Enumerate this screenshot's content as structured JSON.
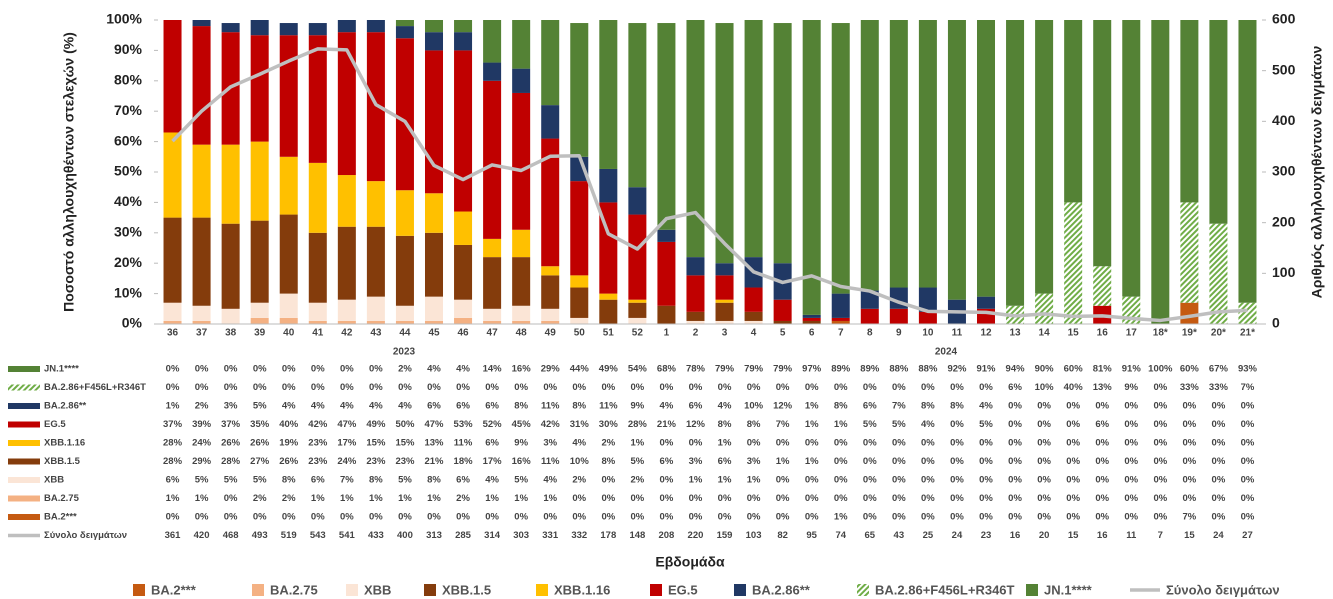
{
  "chart_data": {
    "type": "bar",
    "ylabel": "Ποσοστό αλληλουχηθέντων στελεχών (%)",
    "y2label": "Αριθμός αλληλουχηθέντων δειγμάτων",
    "xlabel": "Εβδομάδα",
    "years": [
      "2023",
      "2024"
    ],
    "categories": [
      "36",
      "37",
      "38",
      "39",
      "40",
      "41",
      "42",
      "43",
      "44",
      "45",
      "46",
      "47",
      "48",
      "49",
      "50",
      "51",
      "52",
      "1",
      "2",
      "3",
      "4",
      "5",
      "6",
      "7",
      "8",
      "9",
      "10",
      "11",
      "12",
      "13",
      "14",
      "15",
      "16",
      "17",
      "18*",
      "19*",
      "20*",
      "21*"
    ],
    "ylim": [
      0,
      100
    ],
    "yticks": [
      {
        "value": 0,
        "label": "0%"
      },
      {
        "value": 10,
        "label": "10%"
      },
      {
        "value": 20,
        "label": "20%"
      },
      {
        "value": 30,
        "label": "30%"
      },
      {
        "value": 40,
        "label": "40%"
      },
      {
        "value": 50,
        "label": "50%"
      },
      {
        "value": 60,
        "label": "60%"
      },
      {
        "value": 70,
        "label": "70%"
      },
      {
        "value": 80,
        "label": "80%"
      },
      {
        "value": 90,
        "label": "90%"
      },
      {
        "value": 100,
        "label": "100%"
      }
    ],
    "y2lim": [
      0,
      600
    ],
    "y2ticks": [
      0,
      100,
      200,
      300,
      400,
      500,
      600
    ],
    "stacked": true,
    "series": [
      {
        "name": "BA.2***",
        "color": "#c55a11",
        "values": [
          0,
          0,
          0,
          0,
          0,
          0,
          0,
          0,
          0,
          0,
          0,
          0,
          0,
          0,
          0,
          0,
          0,
          0,
          0,
          0,
          0,
          0,
          0,
          1,
          0,
          0,
          0,
          0,
          0,
          0,
          0,
          0,
          0,
          0,
          0,
          7,
          0,
          0
        ],
        "value_labels": [
          "0%",
          "0%",
          "0%",
          "0%",
          "0%",
          "0%",
          "0%",
          "0%",
          "0%",
          "0%",
          "0%",
          "0%",
          "0%",
          "0%",
          "0%",
          "0%",
          "0%",
          "0%",
          "0%",
          "0%",
          "0%",
          "0%",
          "0%",
          "1%",
          "0%",
          "0%",
          "0%",
          "0%",
          "0%",
          "0%",
          "0%",
          "0%",
          "0%",
          "0%",
          "0%",
          "7%",
          "0%",
          "0%"
        ]
      },
      {
        "name": "BA.2.75",
        "color": "#f4b183",
        "values": [
          1,
          1,
          0,
          2,
          2,
          1,
          1,
          1,
          1,
          1,
          2,
          1,
          1,
          1,
          0,
          0,
          0,
          0,
          0,
          0,
          0,
          0,
          0,
          0,
          0,
          0,
          0,
          0,
          0,
          0,
          0,
          0,
          0,
          0,
          0,
          0,
          0,
          0
        ],
        "value_labels": [
          "1%",
          "1%",
          "0%",
          "2%",
          "2%",
          "1%",
          "1%",
          "1%",
          "1%",
          "1%",
          "2%",
          "1%",
          "1%",
          "1%",
          "0%",
          "0%",
          "0%",
          "0%",
          "0%",
          "0%",
          "0%",
          "0%",
          "0%",
          "0%",
          "0%",
          "0%",
          "0%",
          "0%",
          "0%",
          "0%",
          "0%",
          "0%",
          "0%",
          "0%",
          "0%",
          "0%",
          "0%",
          "0%"
        ]
      },
      {
        "name": "XBB",
        "color": "#fbe5d6",
        "values": [
          6,
          5,
          5,
          5,
          8,
          6,
          7,
          8,
          5,
          8,
          6,
          4,
          5,
          4,
          2,
          0,
          2,
          0,
          1,
          1,
          1,
          0,
          0,
          0,
          0,
          0,
          0,
          0,
          0,
          0,
          0,
          0,
          0,
          0,
          0,
          0,
          0,
          0
        ],
        "value_labels": [
          "6%",
          "5%",
          "5%",
          "5%",
          "8%",
          "6%",
          "7%",
          "8%",
          "5%",
          "8%",
          "6%",
          "4%",
          "5%",
          "4%",
          "2%",
          "0%",
          "2%",
          "0%",
          "1%",
          "1%",
          "1%",
          "0%",
          "0%",
          "0%",
          "0%",
          "0%",
          "0%",
          "0%",
          "0%",
          "0%",
          "0%",
          "0%",
          "0%",
          "0%",
          "0%",
          "0%",
          "0%",
          "0%"
        ]
      },
      {
        "name": "XBB.1.5",
        "color": "#843c0c",
        "values": [
          28,
          29,
          28,
          27,
          26,
          23,
          24,
          23,
          23,
          21,
          18,
          17,
          16,
          11,
          10,
          8,
          5,
          6,
          3,
          6,
          3,
          1,
          1,
          0,
          0,
          0,
          0,
          0,
          0,
          0,
          0,
          0,
          0,
          0,
          0,
          0,
          0,
          0
        ],
        "value_labels": [
          "28%",
          "29%",
          "28%",
          "27%",
          "26%",
          "23%",
          "24%",
          "23%",
          "23%",
          "21%",
          "18%",
          "17%",
          "16%",
          "11%",
          "10%",
          "8%",
          "5%",
          "6%",
          "3%",
          "6%",
          "3%",
          "1%",
          "1%",
          "0%",
          "0%",
          "0%",
          "0%",
          "0%",
          "0%",
          "0%",
          "0%",
          "0%",
          "0%",
          "0%",
          "0%",
          "0%",
          "0%",
          "0%"
        ]
      },
      {
        "name": "XBB.1.16",
        "color": "#ffc000",
        "values": [
          28,
          24,
          26,
          26,
          19,
          23,
          17,
          15,
          15,
          13,
          11,
          6,
          9,
          3,
          4,
          2,
          1,
          0,
          0,
          1,
          0,
          0,
          0,
          0,
          0,
          0,
          0,
          0,
          0,
          0,
          0,
          0,
          0,
          0,
          0,
          0,
          0,
          0
        ],
        "value_labels": [
          "28%",
          "24%",
          "26%",
          "26%",
          "19%",
          "23%",
          "17%",
          "15%",
          "15%",
          "13%",
          "11%",
          "6%",
          "9%",
          "3%",
          "4%",
          "2%",
          "1%",
          "0%",
          "0%",
          "1%",
          "0%",
          "0%",
          "0%",
          "0%",
          "0%",
          "0%",
          "0%",
          "0%",
          "0%",
          "0%",
          "0%",
          "0%",
          "0%",
          "0%",
          "0%",
          "0%",
          "0%",
          "0%"
        ]
      },
      {
        "name": "EG.5",
        "color": "#c00000",
        "values": [
          37,
          39,
          37,
          35,
          40,
          42,
          47,
          49,
          50,
          47,
          53,
          52,
          45,
          42,
          31,
          30,
          28,
          21,
          12,
          8,
          8,
          7,
          1,
          1,
          5,
          5,
          4,
          0,
          5,
          0,
          0,
          0,
          6,
          0,
          0,
          0,
          0,
          0
        ],
        "value_labels": [
          "37%",
          "39%",
          "37%",
          "35%",
          "40%",
          "42%",
          "47%",
          "49%",
          "50%",
          "47%",
          "53%",
          "52%",
          "45%",
          "42%",
          "31%",
          "30%",
          "28%",
          "21%",
          "12%",
          "8%",
          "8%",
          "7%",
          "1%",
          "1%",
          "5%",
          "5%",
          "4%",
          "0%",
          "5%",
          "0%",
          "0%",
          "0%",
          "6%",
          "0%",
          "0%",
          "0%",
          "0%",
          "0%"
        ]
      },
      {
        "name": "BA.2.86**",
        "color": "#203864",
        "values": [
          1,
          2,
          3,
          5,
          4,
          4,
          4,
          4,
          4,
          6,
          6,
          6,
          8,
          11,
          8,
          11,
          9,
          4,
          6,
          4,
          10,
          12,
          1,
          8,
          6,
          7,
          8,
          8,
          4,
          0,
          0,
          0,
          0,
          0,
          0,
          0,
          0,
          0
        ],
        "value_labels": [
          "1%",
          "2%",
          "3%",
          "5%",
          "4%",
          "4%",
          "4%",
          "4%",
          "4%",
          "6%",
          "6%",
          "6%",
          "8%",
          "11%",
          "8%",
          "11%",
          "9%",
          "4%",
          "6%",
          "4%",
          "10%",
          "12%",
          "1%",
          "8%",
          "6%",
          "7%",
          "8%",
          "8%",
          "4%",
          "0%",
          "0%",
          "0%",
          "0%",
          "0%",
          "0%",
          "0%",
          "0%",
          "0%"
        ]
      },
      {
        "name": "BA.2.86+F456L+R346T",
        "color": "#70ad47",
        "hatched": true,
        "values": [
          0,
          0,
          0,
          0,
          0,
          0,
          0,
          0,
          0,
          0,
          0,
          0,
          0,
          0,
          0,
          0,
          0,
          0,
          0,
          0,
          0,
          0,
          0,
          0,
          0,
          0,
          0,
          0,
          0,
          6,
          10,
          40,
          13,
          9,
          0,
          33,
          33,
          7
        ],
        "value_labels": [
          "0%",
          "0%",
          "0%",
          "0%",
          "0%",
          "0%",
          "0%",
          "0%",
          "0%",
          "0%",
          "0%",
          "0%",
          "0%",
          "0%",
          "0%",
          "0%",
          "0%",
          "0%",
          "0%",
          "0%",
          "0%",
          "0%",
          "0%",
          "0%",
          "0%",
          "0%",
          "0%",
          "0%",
          "0%",
          "6%",
          "10%",
          "40%",
          "13%",
          "9%",
          "0%",
          "33%",
          "33%",
          "7%"
        ]
      },
      {
        "name": "JN.1****",
        "color": "#548235",
        "values": [
          0,
          0,
          0,
          0,
          0,
          0,
          0,
          0,
          2,
          4,
          4,
          14,
          16,
          29,
          44,
          49,
          54,
          68,
          78,
          79,
          79,
          79,
          97,
          89,
          89,
          88,
          88,
          92,
          91,
          94,
          90,
          60,
          81,
          91,
          100,
          60,
          67,
          93
        ],
        "value_labels": [
          "0%",
          "0%",
          "0%",
          "0%",
          "0%",
          "0%",
          "0%",
          "0%",
          "2%",
          "4%",
          "4%",
          "14%",
          "16%",
          "29%",
          "44%",
          "49%",
          "54%",
          "68%",
          "78%",
          "79%",
          "79%",
          "79%",
          "97%",
          "89%",
          "89%",
          "88%",
          "88%",
          "92%",
          "91%",
          "94%",
          "90%",
          "60%",
          "81%",
          "91%",
          "100%",
          "60%",
          "67%",
          "93%"
        ]
      },
      {
        "name": "Σύνολο δειγμάτων",
        "color": "#bfbfbf",
        "type": "line",
        "axis": "y2",
        "values": [
          361,
          420,
          468,
          493,
          519,
          543,
          541,
          433,
          400,
          313,
          285,
          314,
          303,
          331,
          332,
          178,
          148,
          208,
          220,
          159,
          103,
          82,
          95,
          74,
          65,
          43,
          25,
          24,
          23,
          16,
          20,
          15,
          16,
          11,
          7,
          15,
          24,
          27
        ]
      }
    ]
  }
}
